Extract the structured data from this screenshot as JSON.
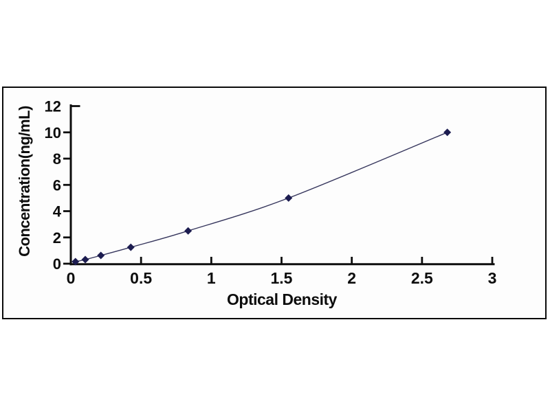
{
  "figure": {
    "background": "#ffffff",
    "frame_border_color": "#0a0a0a",
    "frame_fill": "#fdfdfd"
  },
  "chart_data": {
    "type": "line",
    "title": "",
    "xlabel": "Optical Density",
    "ylabel": "Concentration(ng/mL)",
    "x": [
      0.033,
      0.103,
      0.214,
      0.427,
      0.835,
      1.55,
      2.68
    ],
    "y": [
      0.156,
      0.312,
      0.625,
      1.25,
      2.5,
      5,
      10
    ],
    "xlim": [
      0,
      3
    ],
    "ylim": [
      0,
      12
    ],
    "x_tick_values": [
      0,
      0.5,
      1,
      1.5,
      2,
      2.5,
      3
    ],
    "x_tick_labels": [
      "0",
      "0.5",
      "1",
      "1.5",
      "2",
      "2.5",
      "3"
    ],
    "y_tick_values": [
      0,
      2,
      4,
      6,
      8,
      10,
      12
    ],
    "y_tick_labels": [
      "0",
      "2",
      "4",
      "6",
      "8",
      "10",
      "12"
    ],
    "grid": false,
    "legend_position": "none",
    "curve": "smooth",
    "marker": "diamond",
    "colors": {
      "line": "#35355c",
      "marker": "#1c1c50",
      "axis": "#0d0d0d",
      "text": "#0d0d0d"
    }
  }
}
